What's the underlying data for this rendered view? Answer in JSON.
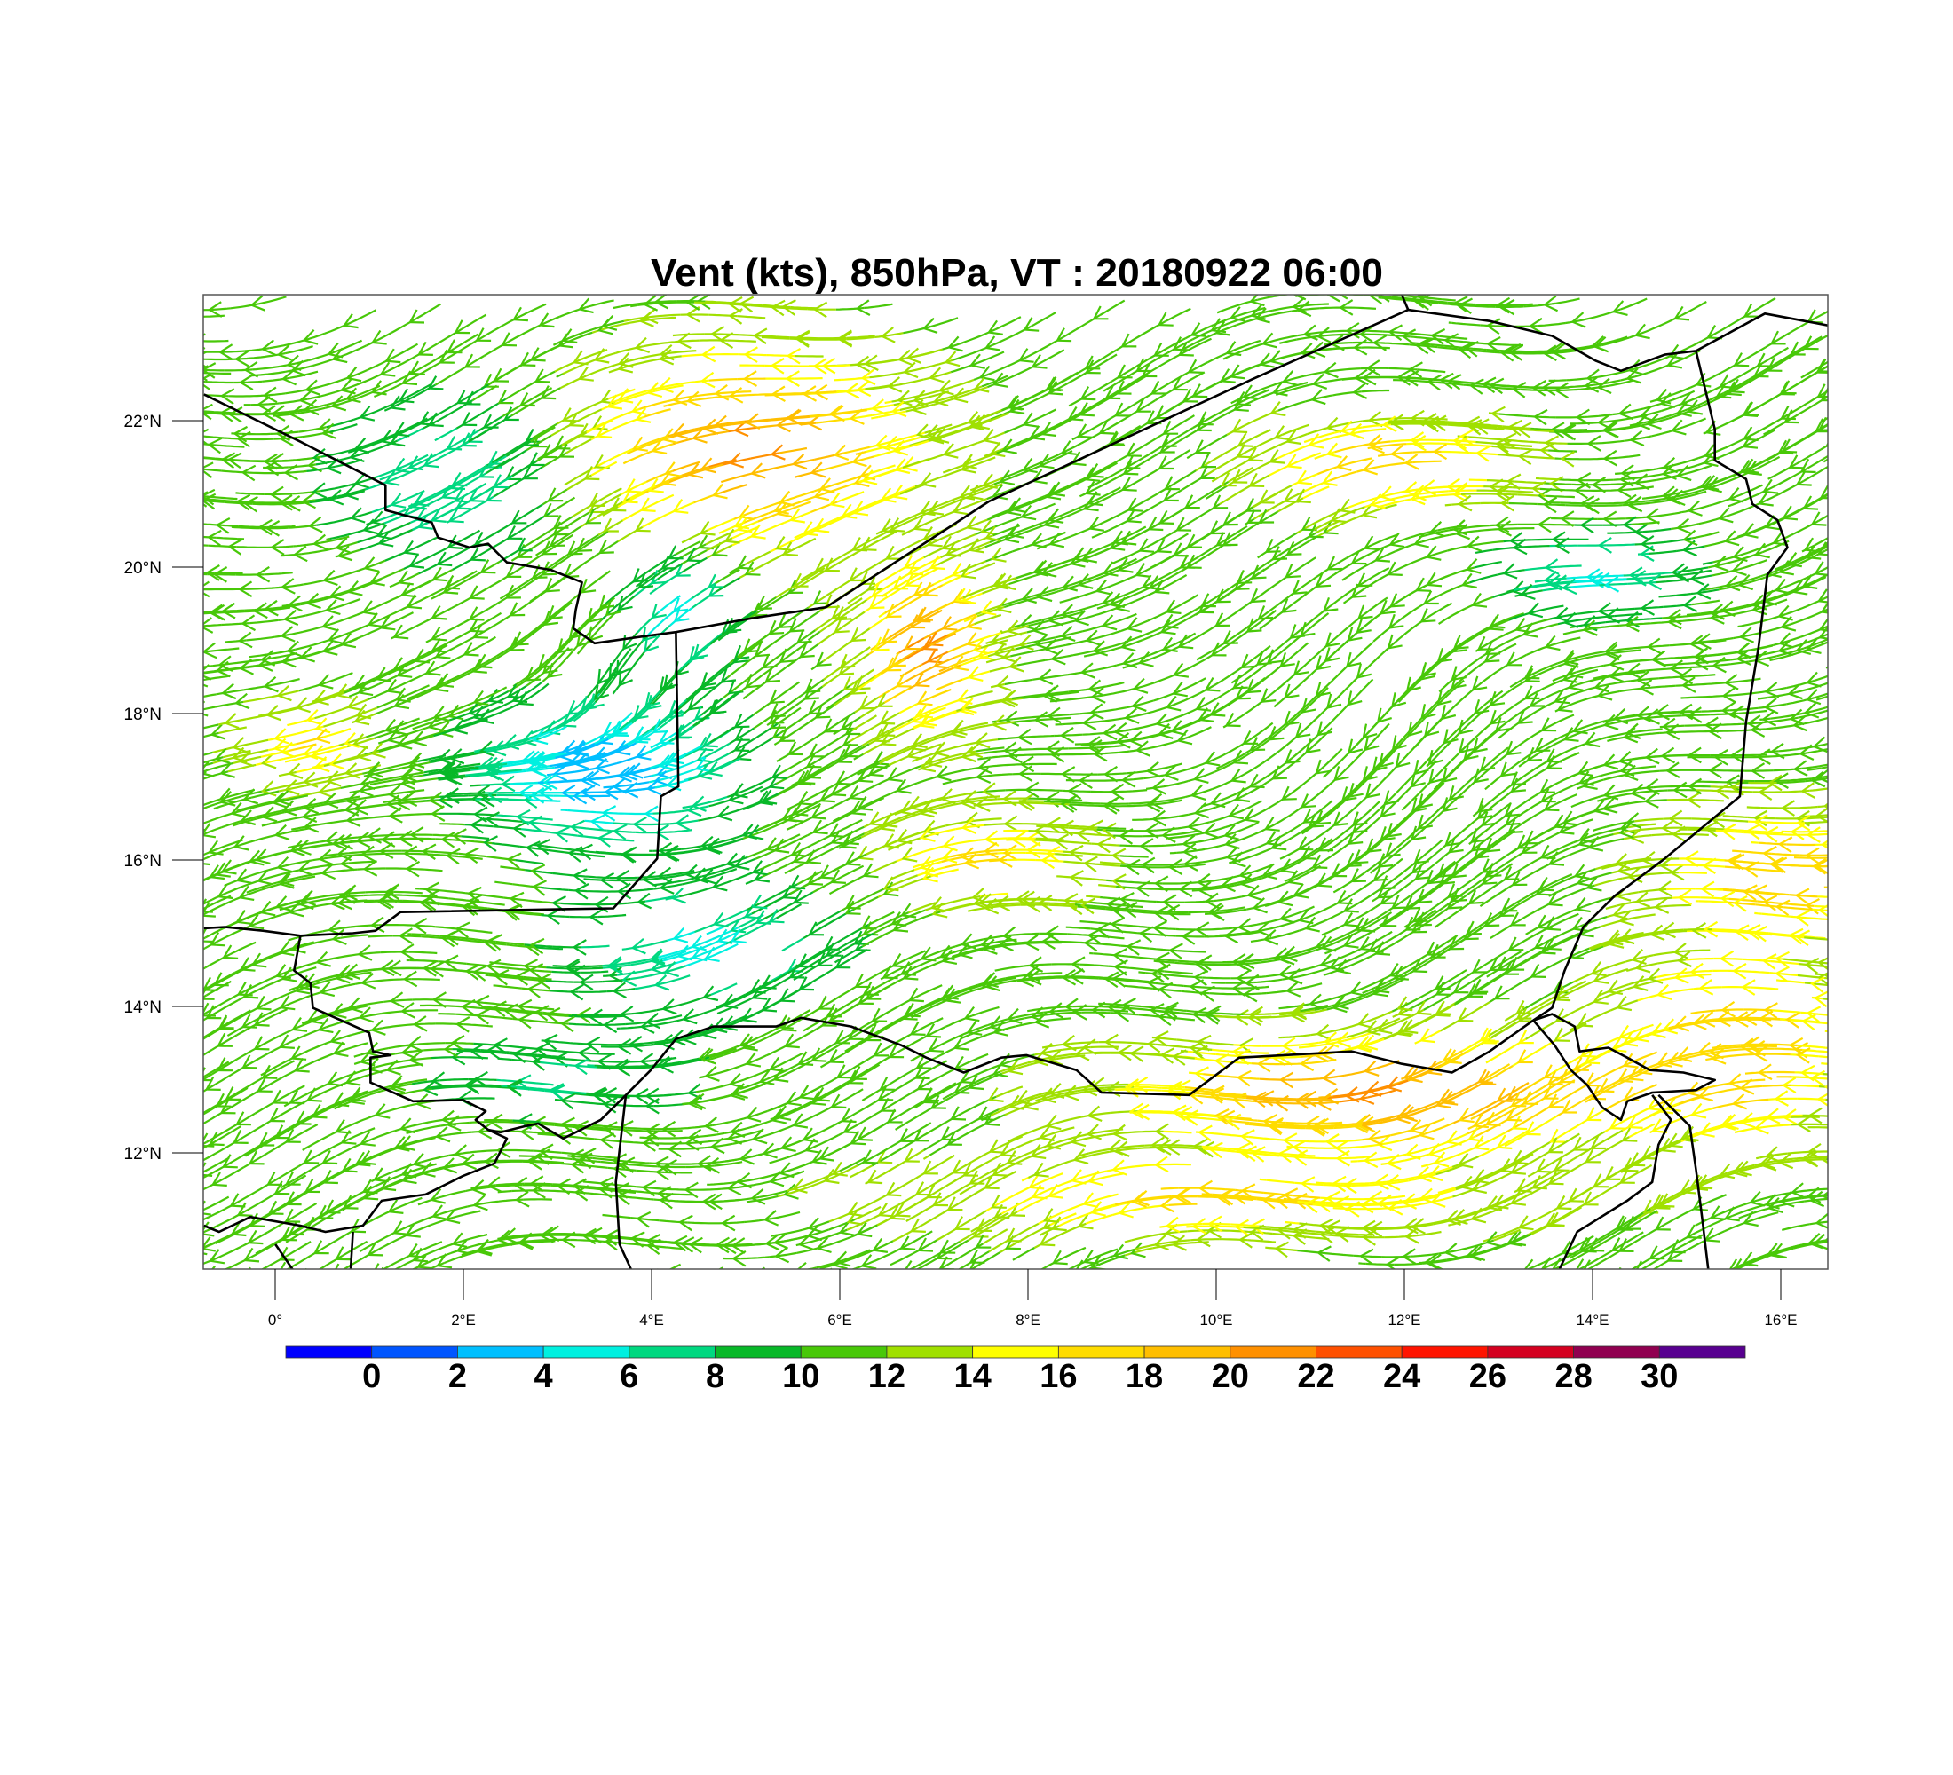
{
  "title": "Vent (kts), 850hPa, VT : 20180922  06:00",
  "map": {
    "lon_range": [
      -0.76,
      16.5
    ],
    "lat_range": [
      10.41,
      23.72
    ],
    "lon_ticks": [
      {
        "value": 0,
        "label": "0°"
      },
      {
        "value": 2,
        "label": "2°E"
      },
      {
        "value": 4,
        "label": "4°E"
      },
      {
        "value": 6,
        "label": "6°E"
      },
      {
        "value": 8,
        "label": "8°E"
      },
      {
        "value": 10,
        "label": "10°E"
      },
      {
        "value": 12,
        "label": "12°E"
      },
      {
        "value": 14,
        "label": "14°E"
      },
      {
        "value": 16,
        "label": "16°E"
      }
    ],
    "lat_ticks": [
      {
        "value": 12,
        "label": "12°N"
      },
      {
        "value": 14,
        "label": "14°N"
      },
      {
        "value": 16,
        "label": "16°N"
      },
      {
        "value": 18,
        "label": "18°N"
      },
      {
        "value": 20,
        "label": "20°N"
      },
      {
        "value": 22,
        "label": "22°N"
      }
    ]
  },
  "colorbar": {
    "units": "kts",
    "labels": [
      "0",
      "2",
      "4",
      "6",
      "8",
      "10",
      "12",
      "14",
      "16",
      "18",
      "20",
      "22",
      "24",
      "26",
      "28",
      "30"
    ],
    "colors": [
      "#0000ff",
      "#0055ff",
      "#00bfff",
      "#00f0e0",
      "#00d880",
      "#08b828",
      "#48c808",
      "#a0e000",
      "#ffff00",
      "#ffdc00",
      "#ffbe00",
      "#ff9000",
      "#ff5000",
      "#ff1400",
      "#d40020",
      "#900050",
      "#580090"
    ]
  }
}
